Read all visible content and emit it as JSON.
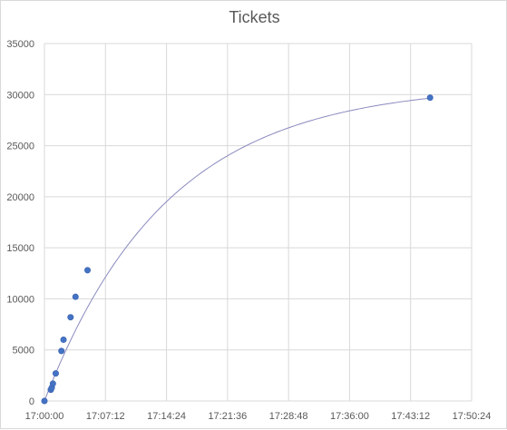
{
  "chart_data": {
    "type": "scatter",
    "title": "Tickets",
    "xlabel": "",
    "ylabel": "",
    "x_ticks": [
      "17:00:00",
      "17:07:12",
      "17:14:24",
      "17:21:36",
      "17:28:48",
      "17:36:00",
      "17:43:12",
      "17:50:24"
    ],
    "y_ticks": [
      "0",
      "5000",
      "10000",
      "15000",
      "20000",
      "25000",
      "30000",
      "35000"
    ],
    "xlim": [
      "17:00:00",
      "17:50:24"
    ],
    "ylim": [
      0,
      35000
    ],
    "grid": true,
    "legend": "none",
    "series": [
      {
        "points": [
          {
            "x": "17:00:00",
            "y": 0
          },
          {
            "x": "17:00:45",
            "y": 1100
          },
          {
            "x": "17:00:52",
            "y": 1300
          },
          {
            "x": "17:01:00",
            "y": 1700
          },
          {
            "x": "17:01:20",
            "y": 2700
          },
          {
            "x": "17:02:00",
            "y": 4900
          },
          {
            "x": "17:02:15",
            "y": 6000
          },
          {
            "x": "17:03:05",
            "y": 8200
          },
          {
            "x": "17:03:40",
            "y": 10200
          },
          {
            "x": "17:05:05",
            "y": 12800
          },
          {
            "x": "17:45:30",
            "y": 29700
          }
        ]
      }
    ],
    "colors": {
      "points": "#4472c4",
      "trendline": "#8a8ac0",
      "grid": "#d9d9d9",
      "text": "#595959"
    }
  }
}
